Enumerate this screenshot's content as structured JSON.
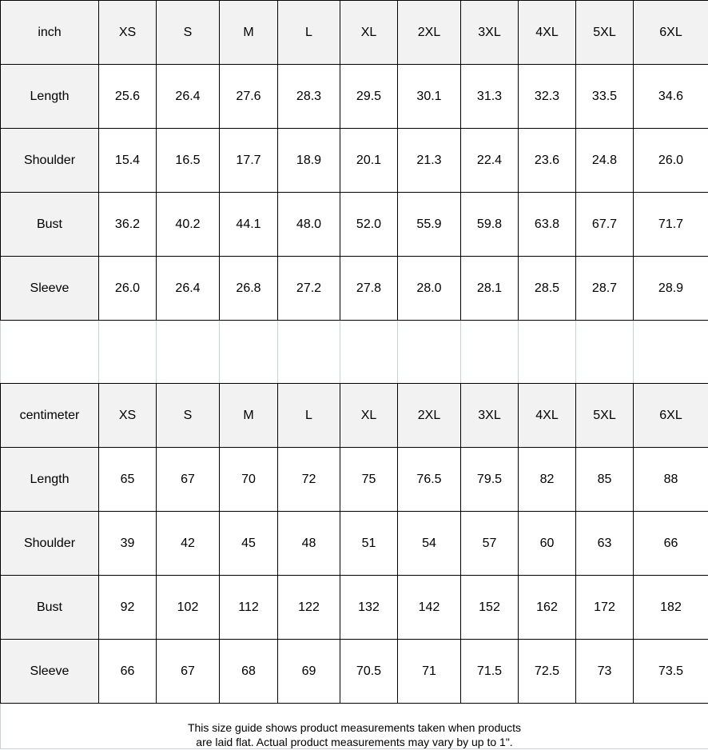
{
  "tables": [
    {
      "unit": "inch",
      "sizes": [
        "XS",
        "S",
        "M",
        "L",
        "XL",
        "2XL",
        "3XL",
        "4XL",
        "5XL",
        "6XL"
      ],
      "rows": [
        {
          "label": "Length",
          "values": [
            "25.6",
            "26.4",
            "27.6",
            "28.3",
            "29.5",
            "30.1",
            "31.3",
            "32.3",
            "33.5",
            "34.6"
          ]
        },
        {
          "label": "Shoulder",
          "values": [
            "15.4",
            "16.5",
            "17.7",
            "18.9",
            "20.1",
            "21.3",
            "22.4",
            "23.6",
            "24.8",
            "26.0"
          ]
        },
        {
          "label": "Bust",
          "values": [
            "36.2",
            "40.2",
            "44.1",
            "48.0",
            "52.0",
            "55.9",
            "59.8",
            "63.8",
            "67.7",
            "71.7"
          ]
        },
        {
          "label": "Sleeve",
          "values": [
            "26.0",
            "26.4",
            "26.8",
            "27.2",
            "27.8",
            "28.0",
            "28.1",
            "28.5",
            "28.7",
            "28.9"
          ]
        }
      ]
    },
    {
      "unit": "centimeter",
      "sizes": [
        "XS",
        "S",
        "M",
        "L",
        "XL",
        "2XL",
        "3XL",
        "4XL",
        "5XL",
        "6XL"
      ],
      "rows": [
        {
          "label": "Length",
          "values": [
            "65",
            "67",
            "70",
            "72",
            "75",
            "76.5",
            "79.5",
            "82",
            "85",
            "88"
          ]
        },
        {
          "label": "Shoulder",
          "values": [
            "39",
            "42",
            "45",
            "48",
            "51",
            "54",
            "57",
            "60",
            "63",
            "66"
          ]
        },
        {
          "label": "Bust",
          "values": [
            "92",
            "102",
            "112",
            "122",
            "132",
            "142",
            "152",
            "162",
            "172",
            "182"
          ]
        },
        {
          "label": "Sleeve",
          "values": [
            "66",
            "67",
            "68",
            "69",
            "70.5",
            "71",
            "71.5",
            "72.5",
            "73",
            "73.5"
          ]
        }
      ]
    }
  ],
  "footer": {
    "line1": "This size guide shows product measurements taken when products",
    "line2": "are laid flat. Actual product measurements may vary by up to 1\"."
  }
}
